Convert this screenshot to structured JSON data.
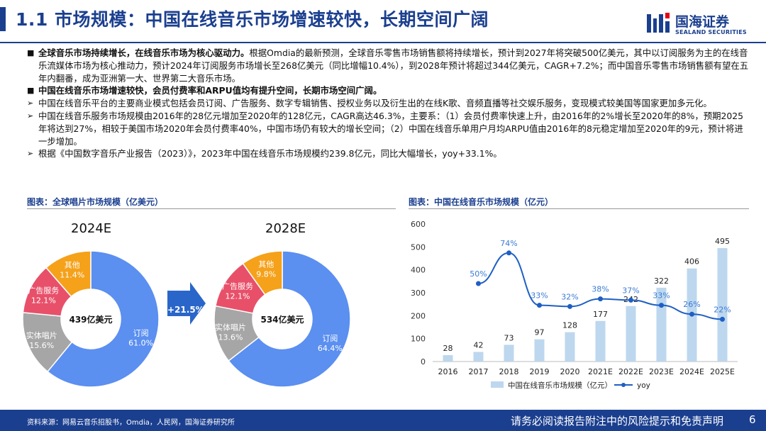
{
  "header": {
    "title": "1.1 市场规模：中国在线音乐市场增速较快，长期空间广阔",
    "logo_cn": "国海证券",
    "logo_en": "SEALAND SECURITIES"
  },
  "body": {
    "p1_bold": "全球音乐市场持续增长，在线音乐市场为核心驱动力。",
    "p1_text": "根据Omdia的最新预测，全球音乐零售市场销售额将持续增长，预计到2027年将突破500亿美元，其中以订阅服务为主的在线音乐流媒体市场为核心推动力，预计2024年订阅服务市场增长至268亿美元（同比增幅10.4%），到2028年预计将超过344亿美元，CAGR+7.2%；而中国音乐零售市场销售额有望在五年内翻番，成为亚洲第一大、世界第二大音乐市场。",
    "p2_bold": "中国在线音乐市场增速较快，会员付费率和ARPU值均有提升空间，长期市场空间广阔。",
    "p3_text": "中国在线音乐平台的主要商业模式包括会员订阅、广告服务、数字专辑销售、授权业务以及衍生出的在线K歌、音频直播等社交娱乐服务，变现模式较美国等国家更加多元化。",
    "p4_text": "中国在线音乐服务市场规模由2016年的28亿元增加至2020年的128亿元，CAGR高达46.3%，主要系：（1）会员付费率快速上升，由2016年的2%增长至2020年的8%，预期2025年将达到27%，相较于美国市场2020年会员付费率40%，中国市场仍有较大的增长空间；（2）中国在线音乐单用户月均ARPU值由2016年的8元稳定增加至2020年的9元，预计将进一步增加。",
    "p5_text": "根据《中国数字音乐产业报告（2023）》，2023年中国在线音乐市场规模约239.8亿元，同比大幅增长，yoy+33.1%。"
  },
  "left_chart": {
    "title": "图表：全球唱片市场规模（亿美元）",
    "arrow_label": "+21.5%"
  },
  "right_chart": {
    "title": "图表：中国在线音乐市场规模（亿元）"
  },
  "chart_data": [
    {
      "type": "pie",
      "title": "2024E",
      "center_label": "439亿美元",
      "total": 439,
      "unit": "亿美元",
      "slices": [
        {
          "name": "订阅",
          "value": 61.0,
          "pct": "61.0%",
          "color": "#5b8ff0"
        },
        {
          "name": "实体唱片",
          "value": 15.6,
          "pct": "15.6%",
          "color": "#a6a6a6"
        },
        {
          "name": "广告服务",
          "value": 12.1,
          "pct": "12.1%",
          "color": "#e8506a"
        },
        {
          "name": "其他",
          "value": 11.4,
          "pct": "11.4%",
          "color": "#f5a11a"
        }
      ]
    },
    {
      "type": "pie",
      "title": "2028E",
      "center_label": "534亿美元",
      "total": 534,
      "unit": "亿美元",
      "slices": [
        {
          "name": "订阅",
          "value": 64.4,
          "pct": "64.4%",
          "color": "#5b8ff0"
        },
        {
          "name": "实体唱片",
          "value": 13.6,
          "pct": "13.6%",
          "color": "#a6a6a6"
        },
        {
          "name": "广告服务",
          "value": 12.1,
          "pct": "12.1%",
          "color": "#e8506a"
        },
        {
          "name": "其他",
          "value": 9.8,
          "pct": "9.8%",
          "color": "#f5a11a"
        }
      ]
    },
    {
      "type": "bar+line",
      "categories": [
        "2016",
        "2017",
        "2018",
        "2019",
        "2020",
        "2021E",
        "2022E",
        "2023E",
        "2024E",
        "2025E"
      ],
      "series": [
        {
          "name": "中国在线音乐市场规模（亿元）",
          "type": "bar",
          "color": "#bdd7ee",
          "values": [
            28,
            42,
            73,
            97,
            128,
            177,
            242,
            322,
            406,
            495
          ]
        },
        {
          "name": "yoy",
          "type": "line",
          "color": "#1f5fc4",
          "values": [
            null,
            50,
            74,
            33,
            32,
            38,
            37,
            33,
            26,
            22
          ],
          "labels": [
            "",
            "50%",
            "74%",
            "33%",
            "32%",
            "38%",
            "37%",
            "33%",
            "26%",
            "22%"
          ]
        }
      ],
      "ylim": [
        0,
        600
      ],
      "yticks": [
        0,
        100,
        200,
        300,
        400,
        500,
        600
      ],
      "legend": "bottom"
    }
  ],
  "footer": {
    "source": "资料来源：网易云音乐招股书，Omdia，人民网，国海证券研究所",
    "disclaimer": "请务必阅读报告附注中的风险提示和免责声明",
    "page": "6"
  }
}
